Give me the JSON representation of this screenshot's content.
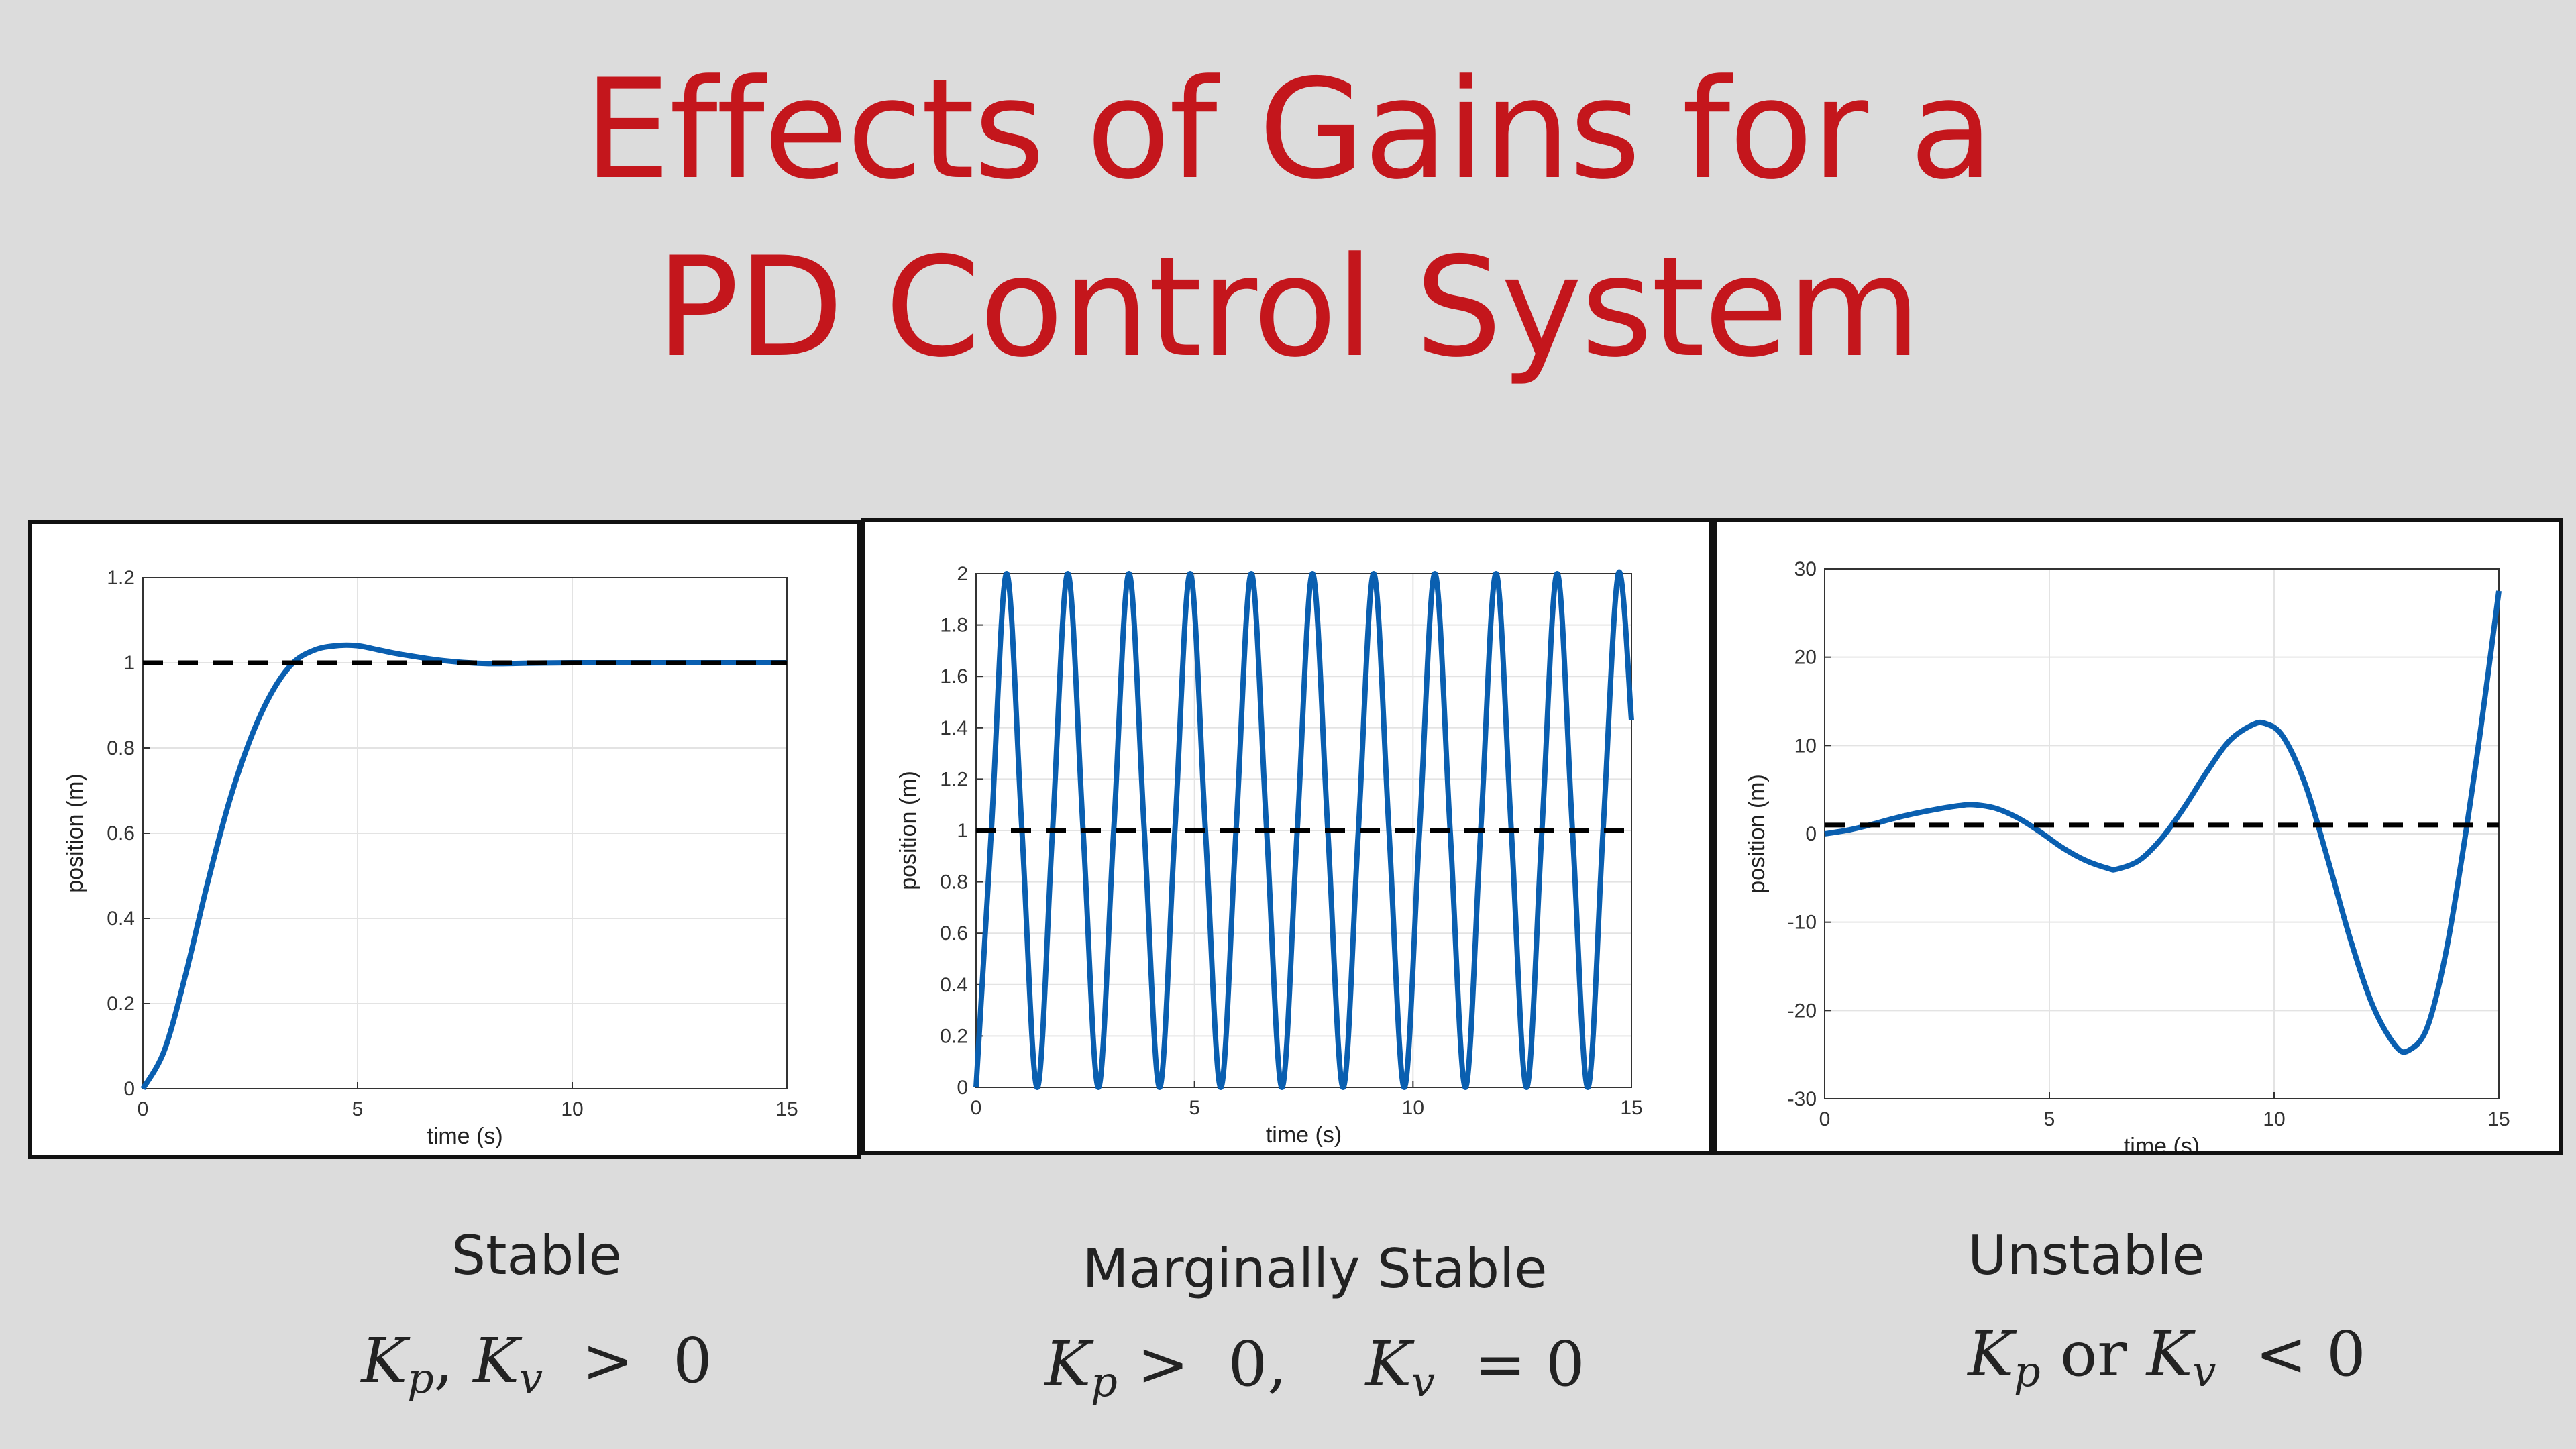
{
  "title": {
    "line1": "Effects of Gains for a",
    "line2": "PD Control System"
  },
  "colors": {
    "title": "#c4161c",
    "series": "#0a5fb0",
    "reference": "#000000",
    "background": "#dcdcdc"
  },
  "panels": [
    {
      "caption": "Stable",
      "formula": {
        "k1": "K",
        "s1": "p",
        "mid": ", ",
        "k2": "K",
        "s2": "v",
        "rel": "  >  0"
      }
    },
    {
      "caption": "Marginally Stable",
      "formula": {
        "k1": "K",
        "s1": "p",
        "mid": " >  0,    ",
        "k2": "K",
        "s2": "v",
        "rel": "  = 0"
      }
    },
    {
      "caption": "Unstable",
      "formula": {
        "k1": "K",
        "s1": "p",
        "mid": " or ",
        "k2": "K",
        "s2": "v",
        "rel": "  < 0"
      }
    }
  ],
  "chart_data": [
    {
      "type": "line",
      "title": "",
      "xlabel": "time (s)",
      "ylabel": "position (m)",
      "xlim": [
        0,
        15
      ],
      "ylim": [
        0,
        1.2
      ],
      "xticks": [
        0,
        5,
        10,
        15
      ],
      "xtick_labels": [
        "0",
        "5",
        "10",
        "15"
      ],
      "yticks": [
        0,
        0.2,
        0.4,
        0.6,
        0.8,
        1,
        1.2
      ],
      "ytick_labels": [
        "0",
        "0.2",
        "0.4",
        "0.6",
        "0.8",
        "1",
        "1.2"
      ],
      "grid": true,
      "series": [
        {
          "style": "solid",
          "x": [
            0,
            0.5,
            1,
            1.5,
            2,
            2.5,
            3,
            3.5,
            4,
            4.5,
            5,
            5.5,
            6,
            7,
            8,
            9,
            10,
            11,
            12,
            13,
            14,
            15
          ],
          "y": [
            0,
            0.09,
            0.27,
            0.48,
            0.67,
            0.82,
            0.93,
            1.0,
            1.03,
            1.04,
            1.04,
            1.03,
            1.02,
            1.005,
            0.998,
            0.999,
            1.0,
            1.0,
            1.0,
            1.0,
            1.0,
            1.0
          ]
        },
        {
          "style": "dashed",
          "x": [
            0,
            15
          ],
          "y": [
            1,
            1
          ]
        }
      ]
    },
    {
      "type": "line",
      "title": "",
      "xlabel": "time (s)",
      "ylabel": "position (m)",
      "xlim": [
        0,
        15
      ],
      "ylim": [
        0,
        2
      ],
      "xticks": [
        0,
        5,
        10,
        15
      ],
      "xtick_labels": [
        "0",
        "5",
        "10",
        "15"
      ],
      "yticks": [
        0,
        0.2,
        0.4,
        0.6,
        0.8,
        1,
        1.2,
        1.4,
        1.6,
        1.8,
        2
      ],
      "ytick_labels": [
        "0",
        "0.2",
        "0.4",
        "0.6",
        "0.8",
        "1",
        "1.2",
        "1.4",
        "1.6",
        "1.8",
        "2"
      ],
      "grid": true,
      "series": [
        {
          "style": "solid",
          "x": [
            0,
            0.35,
            0.7,
            1.05,
            1.4,
            1.75,
            2.1,
            2.45,
            2.8,
            3.15,
            3.5,
            3.85,
            4.2,
            4.55,
            4.9,
            5.25,
            5.6,
            5.95,
            6.3,
            6.65,
            7.0,
            7.35,
            7.7,
            8.05,
            8.4,
            8.75,
            9.1,
            9.45,
            9.8,
            10.15,
            10.5,
            10.85,
            11.2,
            11.55,
            11.9,
            12.25,
            12.6,
            12.95,
            13.3,
            13.65,
            14.0,
            14.35,
            14.7,
            15
          ],
          "y": [
            0,
            1.0,
            2.0,
            1.0,
            0,
            1.0,
            2.0,
            1.0,
            0,
            1.0,
            2.0,
            1.0,
            0,
            1.0,
            2.0,
            1.0,
            0,
            1.0,
            2.0,
            1.0,
            0,
            1.0,
            2.0,
            1.0,
            0,
            1.0,
            2.0,
            1.0,
            0,
            1.0,
            2.0,
            1.0,
            0,
            1.0,
            2.0,
            1.0,
            0,
            1.0,
            2.0,
            1.0,
            0,
            1.0,
            2.0,
            1.43
          ]
        },
        {
          "style": "dashed",
          "x": [
            0,
            15
          ],
          "y": [
            1,
            1
          ]
        }
      ]
    },
    {
      "type": "line",
      "title": "",
      "xlabel": "time (s)",
      "ylabel": "position (m)",
      "xlim": [
        0,
        15
      ],
      "ylim": [
        -30,
        30
      ],
      "xticks": [
        0,
        5,
        10,
        15
      ],
      "xtick_labels": [
        "0",
        "5",
        "10",
        "15"
      ],
      "yticks": [
        -30,
        -20,
        -10,
        0,
        10,
        20,
        30
      ],
      "ytick_labels": [
        "-30",
        "-20",
        "-10",
        "0",
        "10",
        "20",
        "30"
      ],
      "grid": true,
      "series": [
        {
          "style": "solid",
          "x": [
            0,
            0.5,
            1,
            1.5,
            2,
            2.5,
            3,
            3.3,
            3.8,
            4.3,
            4.8,
            5.3,
            5.8,
            6.3,
            6.5,
            7,
            7.5,
            8,
            8.5,
            9,
            9.5,
            9.8,
            10.2,
            10.7,
            11.2,
            11.7,
            12.2,
            12.7,
            13,
            13.4,
            13.8,
            14.2,
            14.6,
            15
          ],
          "y": [
            0,
            0.4,
            1.0,
            1.7,
            2.3,
            2.8,
            3.2,
            3.3,
            2.9,
            1.8,
            0.2,
            -1.6,
            -3.0,
            -3.9,
            -4.0,
            -3.0,
            -0.5,
            3.0,
            7.0,
            10.5,
            12.3,
            12.5,
            11.0,
            5.5,
            -3.0,
            -12.0,
            -19.5,
            -24.0,
            -24.5,
            -22.0,
            -14.0,
            -2.0,
            12.0,
            27.5
          ]
        },
        {
          "style": "dashed",
          "x": [
            0,
            15
          ],
          "y": [
            1,
            1
          ]
        }
      ]
    }
  ]
}
